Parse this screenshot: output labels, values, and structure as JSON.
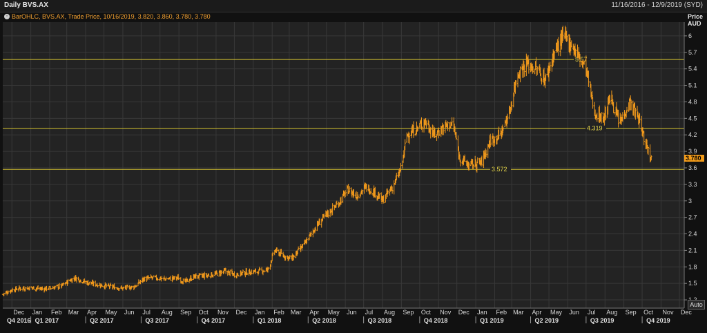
{
  "window": {
    "title": "Daily BVS.AX",
    "date_range": "11/16/2016 - 12/9/2019 (SYD)"
  },
  "legend": {
    "text": "BarOHLC, BVS.AX, Trade Price, 10/16/2019, 3.820, 3.860, 3.780, 3.780",
    "icon": "circle-icon"
  },
  "price_axis": {
    "title_line1": "Price",
    "title_line2": "AUD",
    "last_value_label": "3.780"
  },
  "auto_button_label": "Auto",
  "colors": {
    "background": "#232323",
    "candles": "#f29a1c",
    "levels": "#d8c430",
    "last_badge": "#f39c1a"
  },
  "chart_data": {
    "type": "bar",
    "subtype": "ohlc",
    "series": [
      {
        "name": "BVS.AX",
        "points": [
          [
            "2016-11-16",
            1.3
          ],
          [
            "2016-11-30",
            1.38
          ],
          [
            "2016-12-15",
            1.41
          ],
          [
            "2017-01-02",
            1.42
          ],
          [
            "2017-01-20",
            1.4
          ],
          [
            "2017-02-05",
            1.42
          ],
          [
            "2017-02-20",
            1.45
          ],
          [
            "2017-03-05",
            1.55
          ],
          [
            "2017-03-15",
            1.6
          ],
          [
            "2017-04-01",
            1.52
          ],
          [
            "2017-04-20",
            1.48
          ],
          [
            "2017-05-10",
            1.44
          ],
          [
            "2017-06-01",
            1.41
          ],
          [
            "2017-06-20",
            1.44
          ],
          [
            "2017-07-05",
            1.58
          ],
          [
            "2017-07-20",
            1.6
          ],
          [
            "2017-08-10",
            1.58
          ],
          [
            "2017-08-30",
            1.6
          ],
          [
            "2017-09-10",
            1.52
          ],
          [
            "2017-09-25",
            1.62
          ],
          [
            "2017-10-15",
            1.64
          ],
          [
            "2017-11-01",
            1.67
          ],
          [
            "2017-11-15",
            1.72
          ],
          [
            "2017-12-01",
            1.66
          ],
          [
            "2017-12-20",
            1.7
          ],
          [
            "2018-01-10",
            1.72
          ],
          [
            "2018-01-25",
            1.75
          ],
          [
            "2018-02-05",
            2.1
          ],
          [
            "2018-02-20",
            2.0
          ],
          [
            "2018-03-05",
            1.95
          ],
          [
            "2018-03-25",
            2.2
          ],
          [
            "2018-04-15",
            2.55
          ],
          [
            "2018-05-01",
            2.75
          ],
          [
            "2018-05-20",
            2.95
          ],
          [
            "2018-06-05",
            3.2
          ],
          [
            "2018-06-20",
            3.1
          ],
          [
            "2018-07-05",
            3.25
          ],
          [
            "2018-07-20",
            3.15
          ],
          [
            "2018-08-01",
            3.0
          ],
          [
            "2018-08-20",
            3.3
          ],
          [
            "2018-09-01",
            3.6
          ],
          [
            "2018-09-10",
            4.2
          ],
          [
            "2018-09-25",
            4.3
          ],
          [
            "2018-10-10",
            4.45
          ],
          [
            "2018-10-25",
            4.2
          ],
          [
            "2018-11-10",
            4.35
          ],
          [
            "2018-11-25",
            4.4
          ],
          [
            "2018-12-05",
            3.8
          ],
          [
            "2018-12-20",
            3.65
          ],
          [
            "2019-01-10",
            3.7
          ],
          [
            "2019-01-25",
            4.1
          ],
          [
            "2019-02-10",
            4.2
          ],
          [
            "2019-02-25",
            4.6
          ],
          [
            "2019-03-10",
            5.3
          ],
          [
            "2019-03-25",
            5.5
          ],
          [
            "2019-04-10",
            5.4
          ],
          [
            "2019-04-25",
            5.2
          ],
          [
            "2019-05-10",
            5.7
          ],
          [
            "2019-05-25",
            6.0
          ],
          [
            "2019-06-10",
            5.8
          ],
          [
            "2019-06-20",
            5.6
          ],
          [
            "2019-07-01",
            5.4
          ],
          [
            "2019-07-15",
            4.6
          ],
          [
            "2019-07-30",
            4.5
          ],
          [
            "2019-08-10",
            4.9
          ],
          [
            "2019-08-25",
            4.4
          ],
          [
            "2019-09-10",
            4.8
          ],
          [
            "2019-09-25",
            4.5
          ],
          [
            "2019-10-05",
            4.1
          ],
          [
            "2019-10-16",
            3.78
          ]
        ]
      }
    ],
    "horizontal_levels": [
      {
        "value": 5.57,
        "label": "5.57"
      },
      {
        "value": 4.319,
        "label": "4.319"
      },
      {
        "value": 3.572,
        "label": "3.572"
      }
    ],
    "ylim": [
      1.05,
      6.25
    ],
    "y_ticks": [
      "1.2",
      "1.5",
      "1.8",
      "2.1",
      "2.4",
      "2.7",
      "3",
      "3.3",
      "3.6",
      "3.9",
      "4.2",
      "4.5",
      "4.8",
      "5.1",
      "5.4",
      "5.7",
      "6"
    ],
    "x_range": [
      "2016-11-16",
      "2019-12-09"
    ],
    "month_ticks": [
      {
        "label": "Dec",
        "date": "2016-12-01"
      },
      {
        "label": "Jan",
        "date": "2017-01-01"
      },
      {
        "label": "Feb",
        "date": "2017-02-01"
      },
      {
        "label": "Mar",
        "date": "2017-03-01"
      },
      {
        "label": "Apr",
        "date": "2017-04-01"
      },
      {
        "label": "May",
        "date": "2017-05-01"
      },
      {
        "label": "Jun",
        "date": "2017-06-01"
      },
      {
        "label": "Jul",
        "date": "2017-07-01"
      },
      {
        "label": "Aug",
        "date": "2017-08-01"
      },
      {
        "label": "Sep",
        "date": "2017-09-01"
      },
      {
        "label": "Oct",
        "date": "2017-10-01"
      },
      {
        "label": "Nov",
        "date": "2017-11-01"
      },
      {
        "label": "Dec",
        "date": "2017-12-01"
      },
      {
        "label": "Jan",
        "date": "2018-01-01"
      },
      {
        "label": "Feb",
        "date": "2018-02-01"
      },
      {
        "label": "Mar",
        "date": "2018-03-01"
      },
      {
        "label": "Apr",
        "date": "2018-04-01"
      },
      {
        "label": "May",
        "date": "2018-05-01"
      },
      {
        "label": "Jun",
        "date": "2018-06-01"
      },
      {
        "label": "Jul",
        "date": "2018-07-01"
      },
      {
        "label": "Aug",
        "date": "2018-08-01"
      },
      {
        "label": "Sep",
        "date": "2018-09-01"
      },
      {
        "label": "Oct",
        "date": "2018-10-01"
      },
      {
        "label": "Nov",
        "date": "2018-11-01"
      },
      {
        "label": "Dec",
        "date": "2018-12-01"
      },
      {
        "label": "Jan",
        "date": "2019-01-01"
      },
      {
        "label": "Feb",
        "date": "2019-02-01"
      },
      {
        "label": "Mar",
        "date": "2019-03-01"
      },
      {
        "label": "Apr",
        "date": "2019-04-01"
      },
      {
        "label": "May",
        "date": "2019-05-01"
      },
      {
        "label": "Jun",
        "date": "2019-06-01"
      },
      {
        "label": "Jul",
        "date": "2019-07-01"
      },
      {
        "label": "Aug",
        "date": "2019-08-01"
      },
      {
        "label": "Sep",
        "date": "2019-09-01"
      },
      {
        "label": "Oct",
        "date": "2019-10-01"
      },
      {
        "label": "Nov",
        "date": "2019-11-01"
      },
      {
        "label": "Dec",
        "date": "2019-12-01"
      }
    ],
    "quarter_ticks": [
      {
        "label": "Q4 2016",
        "date": "2016-11-16"
      },
      {
        "label": "Q1 2017",
        "date": "2017-01-01"
      },
      {
        "label": "Q2 2017",
        "date": "2017-04-01"
      },
      {
        "label": "Q3 2017",
        "date": "2017-07-01"
      },
      {
        "label": "Q4 2017",
        "date": "2017-10-01"
      },
      {
        "label": "Q1 2018",
        "date": "2018-01-01"
      },
      {
        "label": "Q2 2018",
        "date": "2018-04-01"
      },
      {
        "label": "Q3 2018",
        "date": "2018-07-01"
      },
      {
        "label": "Q4 2018",
        "date": "2018-10-01"
      },
      {
        "label": "Q1 2019",
        "date": "2019-01-01"
      },
      {
        "label": "Q2 2019",
        "date": "2019-04-01"
      },
      {
        "label": "Q3 2019",
        "date": "2019-07-01"
      },
      {
        "label": "Q4 2019",
        "date": "2019-10-01"
      }
    ],
    "grid": true,
    "legend_position": "top-left"
  }
}
